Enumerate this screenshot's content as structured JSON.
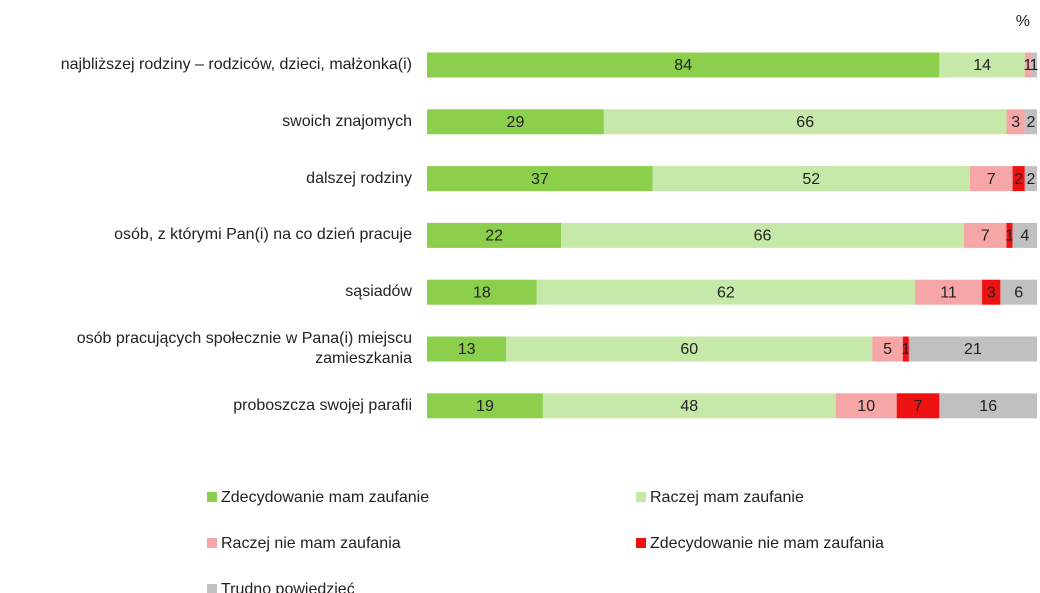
{
  "chart_data": {
    "type": "stacked_bar_horizontal",
    "unit_label": "%",
    "categories": [
      "najbliższej rodziny – rodziców, dzieci, małżonka(i)",
      "swoich znajomych",
      "dalszej rodziny",
      "osób, z którymi Pan(i) na co dzień pracuje",
      "sąsiadów",
      "osób pracujących społecznie w Pana(i) miejscu zamieszkania",
      "proboszcza swojej parafii"
    ],
    "xlim": [
      0,
      100
    ],
    "series": [
      {
        "name": "Zdecydowanie mam zaufanie",
        "color": "#8ccf4d",
        "values": [
          84,
          29,
          37,
          22,
          18,
          13,
          19
        ]
      },
      {
        "name": "Raczej mam zaufanie",
        "color": "#c6e8a9",
        "values": [
          14,
          66,
          52,
          66,
          62,
          60,
          48
        ]
      },
      {
        "name": "Raczej nie mam zaufania",
        "color": "#f6a6a6",
        "values": [
          1,
          3,
          7,
          7,
          11,
          5,
          10
        ]
      },
      {
        "name": "Zdecydowanie nie mam zaufania",
        "color": "#ee1111",
        "values": [
          null,
          null,
          2,
          1,
          3,
          1,
          7
        ]
      },
      {
        "name": "Trudno powiedzieć",
        "color": "#c0c0c0",
        "values": [
          1,
          2,
          2,
          4,
          6,
          21,
          16
        ]
      }
    ]
  }
}
